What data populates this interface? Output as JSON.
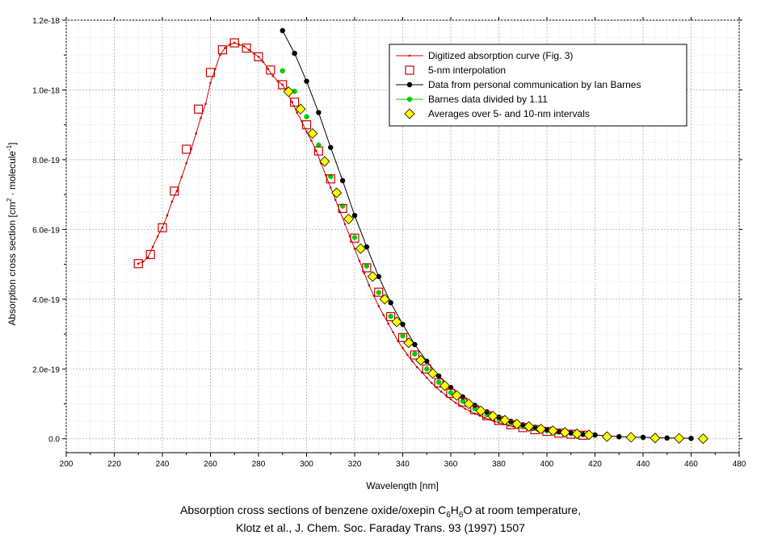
{
  "chart_data": {
    "type": "line",
    "title": "",
    "xlabel": "Wavelength [nm]",
    "ylabel": "Absorption cross section [cm",
    "ylabel_sup1": "2",
    "ylabel_mid": " · molecule",
    "ylabel_sup2": "-1",
    "ylabel_end": "]",
    "xlim": [
      200,
      480
    ],
    "ylim": [
      -4e-20,
      1.2e-18
    ],
    "x_ticks": [
      200,
      220,
      240,
      260,
      280,
      300,
      320,
      340,
      360,
      380,
      400,
      420,
      440,
      460,
      480
    ],
    "x_tick_labels": [
      "200",
      "220",
      "240",
      "260",
      "280",
      "300",
      "320",
      "340",
      "360",
      "380",
      "400",
      "420",
      "440",
      "460",
      "480"
    ],
    "y_ticks": [
      0,
      2e-19,
      4e-19,
      6e-19,
      8e-19,
      1e-18,
      1.2e-18
    ],
    "y_tick_labels": [
      "0.0",
      "2.0e-19",
      "4.0e-19",
      "6.0e-19",
      "8.0e-19",
      "1.0e-18",
      "1.2e-18"
    ],
    "grid": true,
    "legend_position": "top-right",
    "series": [
      {
        "name": "Digitized absorption curve (Fig. 3)",
        "color": "#cc0000",
        "marker": "dot",
        "x": [
          230,
          232,
          234,
          236,
          238,
          240,
          242,
          244,
          246,
          248,
          250,
          252,
          254,
          256,
          258,
          260,
          262,
          264,
          266,
          268,
          270,
          272,
          274,
          276,
          278,
          280,
          282,
          284,
          286,
          288,
          290,
          292,
          294,
          296,
          298,
          300,
          302,
          304,
          306,
          308,
          310,
          312,
          314,
          316,
          318,
          320,
          322,
          324,
          326,
          328,
          330,
          332,
          334,
          336,
          338,
          340,
          342,
          344,
          346,
          348,
          350,
          352,
          354,
          356,
          358,
          360,
          362,
          364,
          366,
          368,
          370,
          372,
          374,
          376,
          378,
          380,
          382,
          384,
          386,
          388,
          390,
          392,
          394,
          396,
          398,
          400,
          402,
          404,
          406,
          408,
          410,
          412,
          414,
          416,
          418,
          420
        ],
        "y": [
          5.02e-19,
          5.08e-19,
          5.2e-19,
          5.5e-19,
          5.8e-19,
          6.05e-19,
          6.4e-19,
          6.8e-19,
          7.1e-19,
          7.5e-19,
          7.9e-19,
          8.3e-19,
          8.75e-19,
          9.2e-19,
          9.6e-19,
          1.02e-18,
          1.06e-18,
          1.1e-18,
          1.12e-18,
          1.13e-18,
          1.135e-18,
          1.13e-18,
          1.125e-18,
          1.115e-18,
          1.105e-18,
          1.095e-18,
          1.08e-18,
          1.06e-18,
          1.04e-18,
          1.025e-18,
          1.015e-18,
          9.9e-19,
          9.65e-19,
          9.35e-19,
          9.1e-19,
          8.8e-19,
          8.55e-19,
          8.25e-19,
          7.9e-19,
          7.55e-19,
          7.2e-19,
          6.85e-19,
          6.5e-19,
          6.15e-19,
          5.8e-19,
          5.45e-19,
          5.1e-19,
          4.75e-19,
          4.4e-19,
          4.1e-19,
          3.8e-19,
          3.55e-19,
          3.3e-19,
          3.05e-19,
          2.8e-19,
          2.6e-19,
          2.4e-19,
          2.22e-19,
          2.05e-19,
          1.9e-19,
          1.75e-19,
          1.6e-19,
          1.47e-19,
          1.35e-19,
          1.24e-19,
          1.13e-19,
          1.03e-19,
          9.4e-20,
          8.6e-20,
          7.9e-20,
          7.2e-20,
          6.6e-20,
          6e-20,
          5.5e-20,
          5e-20,
          4.6e-20,
          4.2e-20,
          3.8e-20,
          3.5e-20,
          3.2e-20,
          3e-20,
          2.7e-20,
          2.5e-20,
          2.3e-20,
          2.1e-20,
          1.9e-20,
          1.8e-20,
          1.6e-20,
          1.5e-20,
          1.4e-20,
          1.3e-20,
          1.2e-20,
          1.1e-20,
          1e-20,
          9e-21,
          8e-21
        ]
      },
      {
        "name": "5-nm interpolation",
        "color": "#cc0000",
        "marker": "open-square",
        "x": [
          230,
          235,
          240,
          245,
          250,
          255,
          260,
          265,
          270,
          275,
          280,
          285,
          290,
          295,
          300,
          305,
          310,
          315,
          320,
          325,
          330,
          335,
          340,
          345,
          350,
          355,
          360,
          365,
          370,
          375,
          380,
          385,
          390,
          395,
          400,
          405,
          410,
          415
        ],
        "y": [
          5.02e-19,
          5.28e-19,
          6.05e-19,
          7.1e-19,
          8.3e-19,
          9.45e-19,
          1.05e-18,
          1.115e-18,
          1.135e-18,
          1.12e-18,
          1.095e-18,
          1.057e-18,
          1.015e-18,
          9.65e-19,
          9e-19,
          8.25e-19,
          7.45e-19,
          6.6e-19,
          5.75e-19,
          4.9e-19,
          4.2e-19,
          3.5e-19,
          2.9e-19,
          2.4e-19,
          2e-19,
          1.6e-19,
          1.3e-19,
          1.05e-19,
          8.3e-20,
          6.6e-20,
          5.2e-20,
          4e-20,
          3.2e-20,
          2.6e-20,
          2.1e-20,
          1.6e-20,
          1.3e-20,
          1e-20
        ]
      },
      {
        "name": "Data from personal communication by Ian Barnes",
        "color": "#000000",
        "marker": "filled-circle",
        "x": [
          290,
          295,
          300,
          305,
          310,
          315,
          320,
          325,
          330,
          335,
          340,
          345,
          350,
          355,
          360,
          365,
          370,
          375,
          380,
          385,
          390,
          395,
          400,
          405,
          410,
          415,
          420,
          425,
          430,
          435,
          440,
          445,
          450,
          455,
          460
        ],
        "y": [
          1.17e-18,
          1.105e-18,
          1.025e-18,
          9.35e-19,
          8.35e-19,
          7.4e-19,
          6.4e-19,
          5.5e-19,
          4.65e-19,
          3.9e-19,
          3.28e-19,
          2.7e-19,
          2.22e-19,
          1.8e-19,
          1.47e-19,
          1.2e-19,
          9.6e-20,
          7.7e-20,
          6.2e-20,
          5e-20,
          4e-20,
          3.3e-20,
          2.6e-20,
          2.1e-20,
          1.7e-20,
          1.3e-20,
          1.1e-20,
          8e-21,
          6e-21,
          5e-21,
          4e-21,
          3e-21,
          2e-21,
          2e-21,
          1e-21
        ]
      },
      {
        "name": "Barnes data divided by 1.11",
        "color": "#00cc00",
        "marker": "filled-circle",
        "x": [
          290,
          295,
          300,
          305,
          310,
          315,
          320,
          325,
          330,
          335,
          340,
          345,
          350,
          355,
          360,
          365,
          370,
          375,
          380,
          385,
          390,
          395,
          400,
          405,
          410,
          415,
          420,
          425,
          430,
          435,
          440,
          445,
          450,
          455,
          460
        ],
        "y": [
          1.055e-18,
          9.96e-19,
          9.23e-19,
          8.42e-19,
          7.52e-19,
          6.67e-19,
          5.77e-19,
          4.95e-19,
          4.19e-19,
          3.51e-19,
          2.95e-19,
          2.43e-19,
          2e-19,
          1.62e-19,
          1.32e-19,
          1.08e-19,
          8.6e-20,
          6.9e-20,
          5.6e-20,
          4.5e-20,
          3.6e-20,
          3e-20,
          2.3e-20,
          1.9e-20,
          1.5e-20,
          1.2e-20,
          1e-20,
          7e-21,
          5e-21,
          4.5e-21,
          3.5e-21,
          2.7e-21,
          1.8e-21,
          1.8e-21,
          9e-22
        ]
      },
      {
        "name": "Averages over 5- and 10-nm intervals",
        "color": "#ffff00",
        "marker": "diamond",
        "x": [
          292.5,
          297.5,
          302.5,
          307.5,
          312.5,
          317.5,
          322.5,
          327.5,
          332.5,
          337.5,
          342.5,
          347.5,
          352.5,
          357.5,
          362.5,
          367.5,
          372.5,
          377.5,
          382.5,
          387.5,
          392.5,
          397.5,
          402.5,
          407.5,
          412.5,
          417.5,
          425,
          435,
          445,
          455,
          465
        ],
        "y": [
          9.95e-19,
          9.45e-19,
          8.75e-19,
          7.95e-19,
          7.05e-19,
          6.3e-19,
          5.45e-19,
          4.65e-19,
          4e-19,
          3.35e-19,
          2.75e-19,
          2.25e-19,
          1.87e-19,
          1.52e-19,
          1.24e-19,
          1e-19,
          8e-20,
          6.5e-20,
          5.3e-20,
          4.2e-20,
          3.5e-20,
          2.8e-20,
          2.3e-20,
          1.8e-20,
          1.4e-20,
          1.1e-20,
          6e-21,
          4e-21,
          2e-21,
          1e-21,
          0.0
        ]
      }
    ]
  },
  "caption": {
    "line1_prefix": "Absorption cross sections of benzene oxide/oxepin C",
    "sub1": "6",
    "h": "H",
    "sub2": "6",
    "line1_suffix": "O at room temperature,",
    "line2": "Klotz et al., J. Chem. Soc. Faraday Trans. 93 (1997) 1507"
  }
}
